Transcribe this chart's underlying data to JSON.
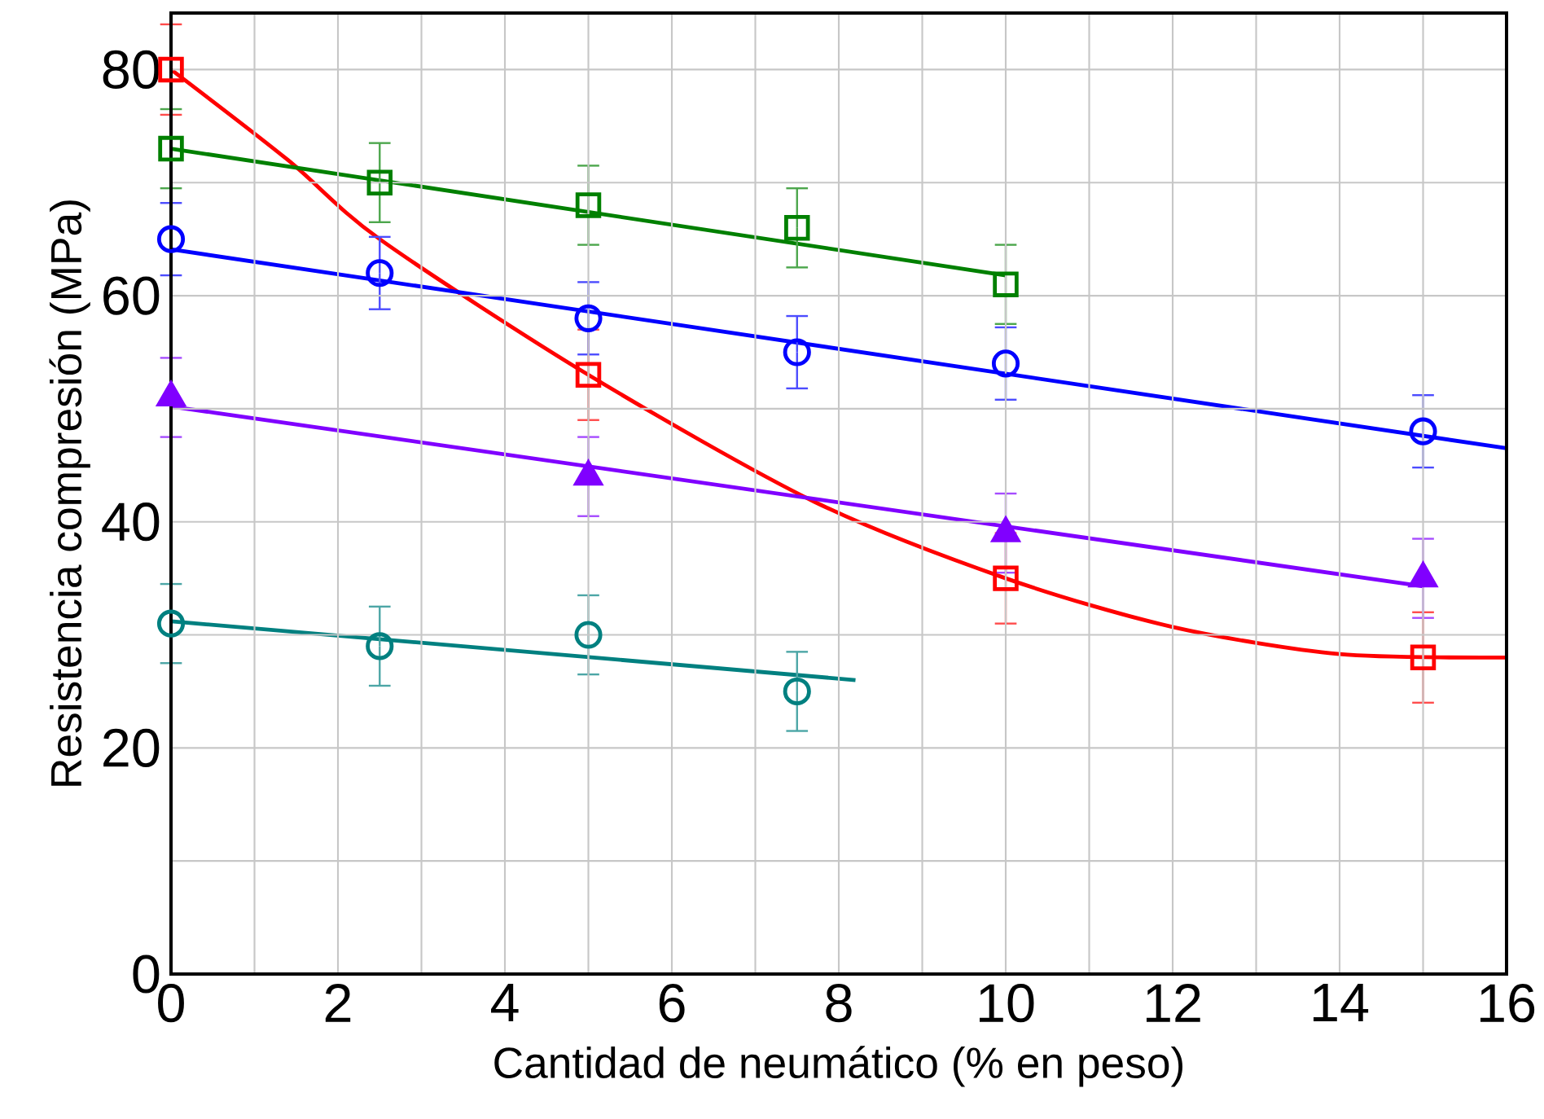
{
  "chart_data": {
    "type": "scatter",
    "xlabel": "Cantidad de neumático (% en peso)",
    "ylabel": "Resistencia compresión  (MPa)",
    "xlim": [
      0,
      16
    ],
    "ylim": [
      0,
      85
    ],
    "xticks": [
      0,
      {
        "value": 1,
        "label": null
      },
      2,
      {
        "value": 3,
        "label": null
      },
      4,
      {
        "value": 5,
        "label": null
      },
      6,
      {
        "value": 7,
        "label": null
      },
      8,
      {
        "value": 9,
        "label": null
      },
      10,
      {
        "value": 11,
        "label": null
      },
      12,
      {
        "value": 13,
        "label": null
      },
      14,
      {
        "value": 15,
        "label": null
      },
      16
    ],
    "yticks": [
      0,
      {
        "value": 10,
        "label": null
      },
      20,
      {
        "value": 30,
        "label": null
      },
      40,
      {
        "value": 50,
        "label": null
      },
      60,
      {
        "value": 70,
        "label": null
      },
      80
    ],
    "grid": true,
    "series": [
      {
        "marker": "square",
        "color": "#ff0000",
        "x": [
          0,
          5,
          10,
          15
        ],
        "values": [
          80,
          53,
          35,
          28
        ],
        "errors": [
          4,
          4,
          4,
          4
        ]
      },
      {
        "marker": "square",
        "color": "#008000",
        "x": [
          0,
          2.5,
          5,
          7.5,
          10
        ],
        "values": [
          73,
          70,
          68,
          66,
          61
        ],
        "errors": [
          3.5,
          3.5,
          3.5,
          3.5,
          3.5
        ]
      },
      {
        "marker": "circle",
        "color": "#0000ff",
        "x": [
          0,
          2.5,
          5,
          7.5,
          10,
          15
        ],
        "values": [
          65,
          62,
          58,
          55,
          54,
          48
        ],
        "errors": [
          3.2,
          3.2,
          3.2,
          3.2,
          3.2,
          3.2
        ]
      },
      {
        "marker": "triangle",
        "color": "#8000ff",
        "x": [
          0,
          5,
          10,
          15
        ],
        "values": [
          51,
          44,
          39,
          35
        ],
        "errors": [
          3.5,
          3.5,
          3.5,
          3.5
        ]
      },
      {
        "marker": "circle",
        "color": "#008080",
        "x": [
          0,
          2.5,
          5,
          7.5
        ],
        "values": [
          31,
          29,
          30,
          25
        ],
        "errors": [
          3.5,
          3.5,
          3.5,
          3.5
        ]
      },
      {
        "type": "line",
        "color": "#ff0000",
        "x": [
          0,
          1.4,
          2.5,
          5,
          7.7,
          10,
          12,
          14,
          16
        ],
        "values": [
          80,
          72,
          65,
          53,
          41.8,
          35,
          30.7,
          28.3,
          28
        ]
      },
      {
        "type": "line",
        "color": "#008000",
        "x": [
          0,
          10
        ],
        "values": [
          73,
          61.8
        ]
      },
      {
        "type": "line",
        "color": "#0000ff",
        "x": [
          0,
          16
        ],
        "values": [
          64.1,
          46.5
        ]
      },
      {
        "type": "line",
        "color": "#8000ff",
        "x": [
          0,
          15
        ],
        "values": [
          50.2,
          34.3
        ]
      },
      {
        "type": "line",
        "color": "#008080",
        "x": [
          0,
          8.2
        ],
        "values": [
          31.2,
          26
        ]
      }
    ]
  }
}
